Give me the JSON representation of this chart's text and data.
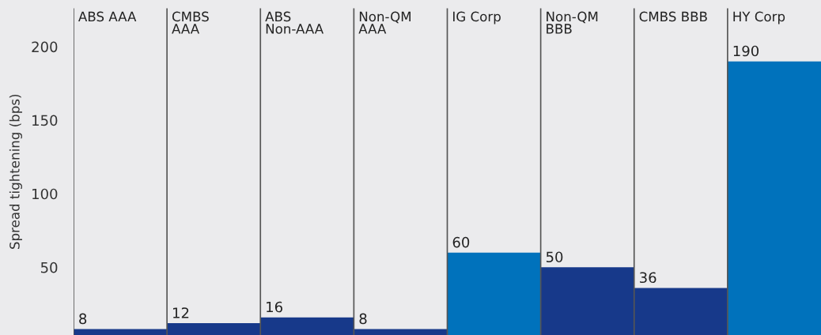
{
  "chart_data": {
    "type": "bar",
    "ylabel": "Spread tightening (bps)",
    "categories": [
      "ABS AAA",
      "CMBS\nAAA",
      "ABS\nNon-AAA",
      "Non-QM\nAAA",
      "IG Corp",
      "Non-QM\nBBB",
      "CMBS BBB",
      "HY Corp"
    ],
    "values": [
      8,
      12,
      16,
      8,
      60,
      50,
      36,
      190
    ],
    "colors": [
      "#17398a",
      "#17398a",
      "#17398a",
      "#17398a",
      "#0072bc",
      "#17398a",
      "#17398a",
      "#0072bc"
    ],
    "data_labels": true,
    "ylim": [
      4,
      226
    ],
    "yticks": [
      50,
      100,
      150,
      200
    ],
    "grid": false,
    "legend": false
  }
}
